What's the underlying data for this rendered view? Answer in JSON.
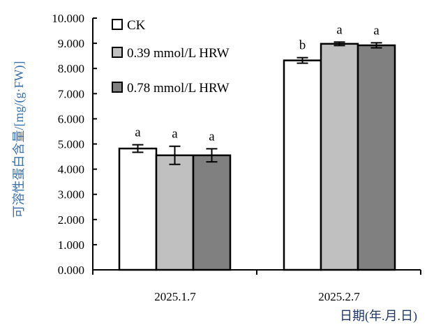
{
  "chart_data": {
    "type": "bar",
    "title": "",
    "xlabel": "日期(年.月.日)",
    "ylabel": "可溶性蛋白含量/[mg/(g·FW)]",
    "ylim": [
      0,
      10
    ],
    "yticks": [
      "0.000",
      "1.000",
      "2.000",
      "3.000",
      "4.000",
      "5.000",
      "6.000",
      "7.000",
      "8.000",
      "9.000",
      "10.000"
    ],
    "categories": [
      "2025.1.7",
      "2025.2.7"
    ],
    "legend_position": "top-left",
    "series": [
      {
        "name": "CK",
        "color": "#ffffff",
        "values": [
          4.82,
          8.32
        ],
        "errors": [
          0.15,
          0.11
        ],
        "labels": [
          "a",
          "b"
        ]
      },
      {
        "name": "0.39 mmol/L HRW",
        "color": "#c0c0c0",
        "values": [
          4.55,
          8.98
        ],
        "errors": [
          0.36,
          0.07
        ],
        "labels": [
          "a",
          "a"
        ]
      },
      {
        "name": "0.78 mmol/L HRW",
        "color": "#808080",
        "values": [
          4.55,
          8.92
        ],
        "errors": [
          0.26,
          0.1
        ],
        "labels": [
          "a",
          "a"
        ]
      }
    ]
  }
}
